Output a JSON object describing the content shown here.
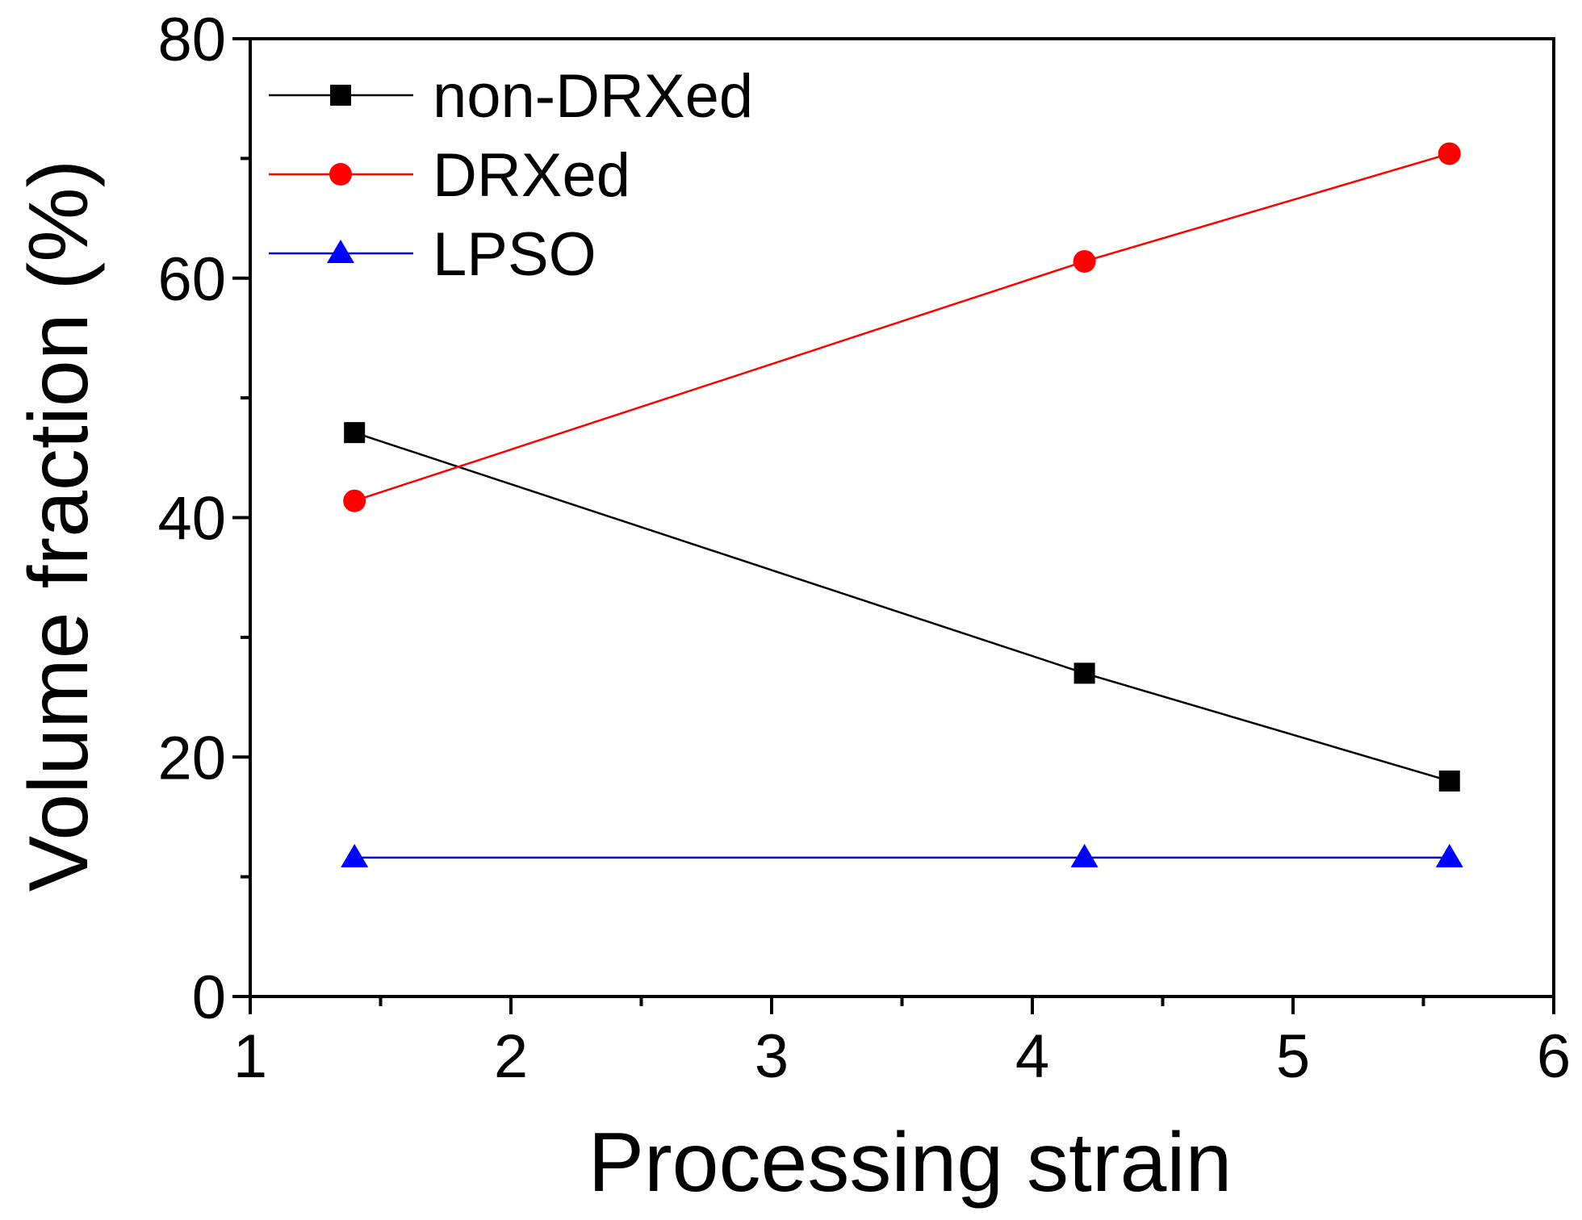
{
  "chart_data": {
    "type": "line",
    "title": "",
    "xlabel": "Processing strain",
    "ylabel": "Volume fraction (%)",
    "xlim": [
      1,
      6
    ],
    "ylim": [
      0,
      80
    ],
    "x_ticks": [
      1,
      2,
      3,
      4,
      5,
      6
    ],
    "x_tick_labels": [
      "1",
      "2",
      "3",
      "4",
      "5",
      "6"
    ],
    "y_ticks": [
      0,
      20,
      40,
      60,
      80
    ],
    "y_tick_labels": [
      "0",
      "20",
      "40",
      "60",
      "80"
    ],
    "grid": false,
    "legend_position": "top-left",
    "series": [
      {
        "name": "non-DRXed",
        "color": "#000000",
        "marker": "square",
        "x": [
          1.4,
          4.2,
          5.6
        ],
        "y": [
          47.1,
          27.0,
          18.0
        ]
      },
      {
        "name": "DRXed",
        "color": "#ff0000",
        "marker": "circle",
        "x": [
          1.4,
          4.2,
          5.6
        ],
        "y": [
          41.4,
          61.4,
          70.4
        ]
      },
      {
        "name": "LPSO",
        "color": "#0000ff",
        "marker": "triangle",
        "x": [
          1.4,
          4.2,
          5.6
        ],
        "y": [
          11.6,
          11.6,
          11.6
        ]
      }
    ]
  }
}
